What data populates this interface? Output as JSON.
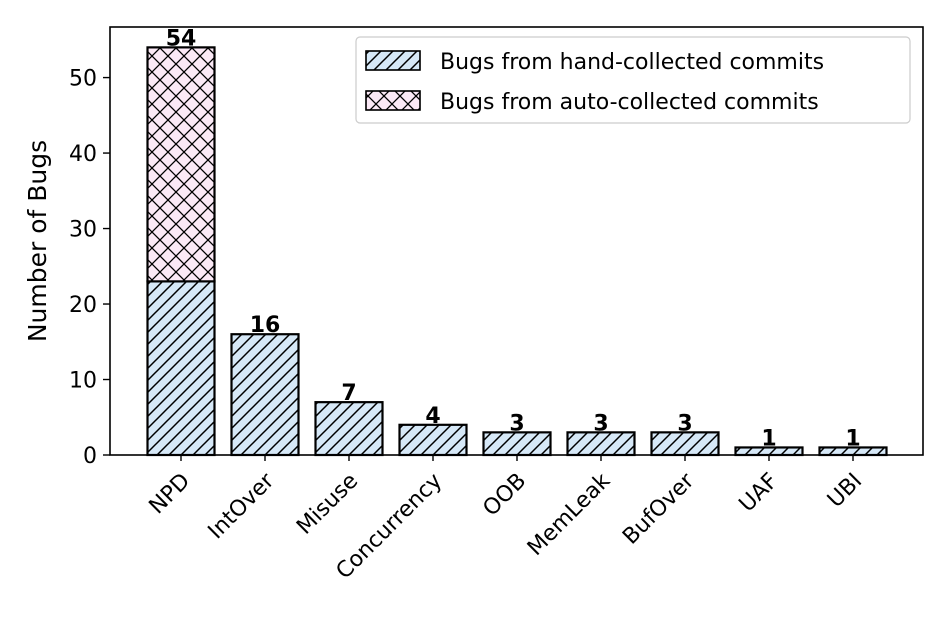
{
  "chart_data": {
    "type": "bar",
    "stacked": true,
    "categories": [
      "NPD",
      "IntOver",
      "Misuse",
      "Concurrency",
      "OOB",
      "MemLeak",
      "BufOver",
      "UAF",
      "UBI"
    ],
    "series": [
      {
        "name": "Bugs from hand-collected commits",
        "values": [
          23,
          16,
          7,
          4,
          3,
          3,
          3,
          1,
          1
        ],
        "color": "#d6e8f7",
        "hatch": "diagonal"
      },
      {
        "name": "Bugs from auto-collected commits",
        "values": [
          31,
          0,
          0,
          0,
          0,
          0,
          0,
          0,
          0
        ],
        "color": "#fbe9f6",
        "hatch": "crosshatch"
      }
    ],
    "totals": [
      54,
      16,
      7,
      4,
      3,
      3,
      3,
      1,
      1
    ],
    "total_labels": [
      "54",
      "16",
      "7",
      "4",
      "3",
      "3",
      "3",
      "1",
      "1"
    ],
    "xlabel": "",
    "ylabel": "Number of Bugs",
    "ylim": [
      0,
      56.7
    ],
    "yticks": [
      0,
      10,
      20,
      30,
      40,
      50
    ],
    "grid": false,
    "legend_position": "top-right",
    "xtick_rotation": -45
  }
}
